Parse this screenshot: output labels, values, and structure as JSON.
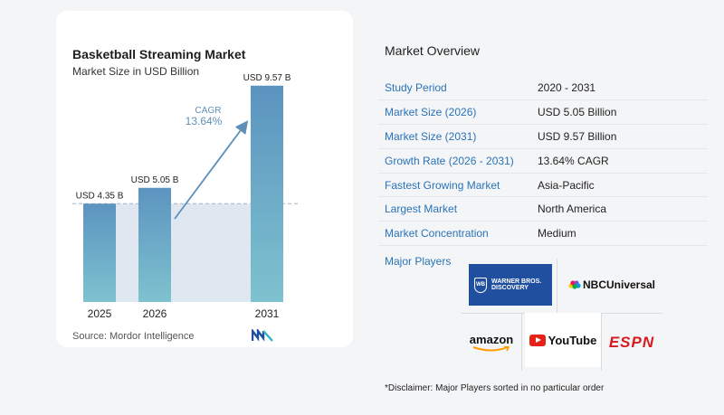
{
  "chart_data": {
    "type": "bar",
    "title": "Basketball Streaming Market",
    "subtitle": "Market Size in USD Billion",
    "categories": [
      "2025",
      "2026",
      "2031"
    ],
    "values": [
      4.35,
      5.05,
      9.57
    ],
    "data_labels": [
      "USD 4.35 B",
      "USD 5.05 B",
      "USD 9.57 B"
    ],
    "cagr_label": "CAGR",
    "cagr_value": "13.64%",
    "ylim": [
      0,
      10
    ],
    "grid": false,
    "colors": {
      "bar_top": "#5b94c0",
      "bar_bottom": "#7fc2cf",
      "shade": "#dfe8f1",
      "arrow": "#5f8fb7",
      "cagr_text": "#5f8fb7"
    }
  },
  "source": "Source:  Mordor Intelligence",
  "overview": {
    "title": "Market Overview",
    "rows": [
      {
        "key": "Study Period",
        "value": "2020 - 2031"
      },
      {
        "key": "Market Size (2026)",
        "value": "USD 5.05 Billion"
      },
      {
        "key": "Market Size (2031)",
        "value": "USD 9.57 Billion"
      },
      {
        "key": "Growth Rate (2026 - 2031)",
        "value": "13.64% CAGR"
      },
      {
        "key": "Fastest Growing Market",
        "value": "Asia-Pacific"
      },
      {
        "key": "Largest Market",
        "value": "North America"
      },
      {
        "key": "Market Concentration",
        "value": "Medium"
      }
    ]
  },
  "players": {
    "label": "Major Players",
    "logos": {
      "warner": {
        "shield": "WB",
        "line1": "WARNER BROS.",
        "line2": "DISCOVERY"
      },
      "nbc": "NBCUniversal",
      "amazon": "amazon",
      "youtube": "YouTube",
      "espn": "ESPN"
    }
  },
  "disclaimer": "*Disclaimer: Major Players sorted in no particular order"
}
